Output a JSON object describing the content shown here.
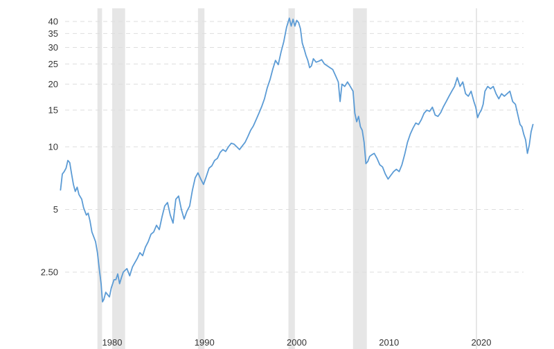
{
  "chart_data": {
    "type": "line",
    "title": "",
    "xlabel": "",
    "ylabel": "",
    "y_scale": "log",
    "ylim": [
      1.8,
      42
    ],
    "xlim": [
      1975.0,
      2026.3
    ],
    "grid": {
      "horizontal": true,
      "vertical": false,
      "style": "dashed"
    },
    "y_ticks": [
      {
        "value": 40,
        "label": "40"
      },
      {
        "value": 35,
        "label": "35"
      },
      {
        "value": 30,
        "label": "30"
      },
      {
        "value": 25,
        "label": "25"
      },
      {
        "value": 20,
        "label": "20"
      },
      {
        "value": 15,
        "label": "15"
      },
      {
        "value": 10,
        "label": "10"
      },
      {
        "value": 5,
        "label": "5"
      },
      {
        "value": 2.5,
        "label": "2.50"
      }
    ],
    "x_ticks": [
      {
        "value": 1980,
        "label": "1980"
      },
      {
        "value": 1990,
        "label": "1990"
      },
      {
        "value": 2000,
        "label": "2000"
      },
      {
        "value": 2010,
        "label": "2010"
      },
      {
        "value": 2020,
        "label": "2020"
      }
    ],
    "shaded_periods": [
      {
        "start": 1979.0,
        "end": 1979.5
      },
      {
        "start": 1980.6,
        "end": 1982.0
      },
      {
        "start": 1989.9,
        "end": 1990.6
      },
      {
        "start": 1999.7,
        "end": 2000.4
      },
      {
        "start": 2006.7,
        "end": 2008.2
      },
      {
        "start": 2020.0,
        "end": 2020.15
      }
    ],
    "series": [
      {
        "color": "#5b9bd5",
        "points": [
          [
            1975.0,
            6.2
          ],
          [
            1975.2,
            7.4
          ],
          [
            1975.4,
            7.6
          ],
          [
            1975.6,
            7.9
          ],
          [
            1975.8,
            8.6
          ],
          [
            1976.0,
            8.4
          ],
          [
            1976.2,
            7.4
          ],
          [
            1976.4,
            6.6
          ],
          [
            1976.6,
            6.1
          ],
          [
            1976.8,
            6.4
          ],
          [
            1977.0,
            5.9
          ],
          [
            1977.3,
            5.6
          ],
          [
            1977.5,
            5.1
          ],
          [
            1977.8,
            4.7
          ],
          [
            1978.0,
            4.8
          ],
          [
            1978.2,
            4.4
          ],
          [
            1978.4,
            3.9
          ],
          [
            1978.6,
            3.7
          ],
          [
            1978.8,
            3.5
          ],
          [
            1979.0,
            3.1
          ],
          [
            1979.2,
            2.6
          ],
          [
            1979.4,
            2.2
          ],
          [
            1979.55,
            1.8
          ],
          [
            1979.7,
            1.85
          ],
          [
            1979.9,
            2.0
          ],
          [
            1980.1,
            1.95
          ],
          [
            1980.3,
            1.9
          ],
          [
            1980.5,
            2.1
          ],
          [
            1980.8,
            2.3
          ],
          [
            1981.0,
            2.3
          ],
          [
            1981.2,
            2.45
          ],
          [
            1981.4,
            2.2
          ],
          [
            1981.6,
            2.35
          ],
          [
            1981.8,
            2.5
          ],
          [
            1982.0,
            2.55
          ],
          [
            1982.2,
            2.6
          ],
          [
            1982.5,
            2.4
          ],
          [
            1982.8,
            2.65
          ],
          [
            1983.0,
            2.75
          ],
          [
            1983.3,
            2.9
          ],
          [
            1983.6,
            3.1
          ],
          [
            1983.9,
            3.0
          ],
          [
            1984.2,
            3.3
          ],
          [
            1984.5,
            3.5
          ],
          [
            1984.8,
            3.8
          ],
          [
            1985.1,
            3.9
          ],
          [
            1985.4,
            4.2
          ],
          [
            1985.7,
            4.0
          ],
          [
            1986.0,
            4.6
          ],
          [
            1986.3,
            5.2
          ],
          [
            1986.6,
            5.4
          ],
          [
            1986.9,
            4.7
          ],
          [
            1987.2,
            4.3
          ],
          [
            1987.5,
            5.6
          ],
          [
            1987.8,
            5.8
          ],
          [
            1988.1,
            5.0
          ],
          [
            1988.4,
            4.5
          ],
          [
            1988.7,
            4.9
          ],
          [
            1989.0,
            5.2
          ],
          [
            1989.3,
            6.2
          ],
          [
            1989.6,
            7.1
          ],
          [
            1989.9,
            7.5
          ],
          [
            1990.2,
            7.0
          ],
          [
            1990.5,
            6.6
          ],
          [
            1990.8,
            7.2
          ],
          [
            1991.1,
            7.9
          ],
          [
            1991.4,
            8.1
          ],
          [
            1991.7,
            8.6
          ],
          [
            1992.0,
            8.8
          ],
          [
            1992.3,
            9.4
          ],
          [
            1992.6,
            9.7
          ],
          [
            1992.9,
            9.5
          ],
          [
            1993.2,
            10.0
          ],
          [
            1993.5,
            10.4
          ],
          [
            1993.8,
            10.3
          ],
          [
            1994.1,
            10.0
          ],
          [
            1994.4,
            9.7
          ],
          [
            1994.7,
            10.1
          ],
          [
            1995.0,
            10.5
          ],
          [
            1995.3,
            11.2
          ],
          [
            1995.6,
            12.0
          ],
          [
            1995.9,
            12.6
          ],
          [
            1996.2,
            13.5
          ],
          [
            1996.5,
            14.5
          ],
          [
            1996.8,
            15.6
          ],
          [
            1997.1,
            17.0
          ],
          [
            1997.4,
            19.2
          ],
          [
            1997.7,
            21.0
          ],
          [
            1998.0,
            23.6
          ],
          [
            1998.3,
            26.0
          ],
          [
            1998.6,
            24.8
          ],
          [
            1998.9,
            28.5
          ],
          [
            1999.2,
            32.0
          ],
          [
            1999.5,
            37.5
          ],
          [
            1999.8,
            41.5
          ],
          [
            2000.0,
            38.0
          ],
          [
            2000.2,
            41.0
          ],
          [
            2000.4,
            38.0
          ],
          [
            2000.6,
            40.5
          ],
          [
            2000.8,
            39.5
          ],
          [
            2001.0,
            37.0
          ],
          [
            2001.2,
            31.5
          ],
          [
            2001.4,
            29.5
          ],
          [
            2001.6,
            27.5
          ],
          [
            2001.8,
            26.0
          ],
          [
            2002.0,
            24.0
          ],
          [
            2002.2,
            24.5
          ],
          [
            2002.4,
            26.5
          ],
          [
            2002.7,
            25.5
          ],
          [
            2003.0,
            25.8
          ],
          [
            2003.3,
            26.2
          ],
          [
            2003.6,
            25.0
          ],
          [
            2003.9,
            24.5
          ],
          [
            2004.2,
            24.0
          ],
          [
            2004.5,
            23.5
          ],
          [
            2004.8,
            22.0
          ],
          [
            2005.1,
            20.5
          ],
          [
            2005.3,
            16.5
          ],
          [
            2005.5,
            20.0
          ],
          [
            2005.8,
            19.5
          ],
          [
            2006.1,
            20.5
          ],
          [
            2006.4,
            19.5
          ],
          [
            2006.7,
            18.5
          ],
          [
            2006.9,
            14.5
          ],
          [
            2007.1,
            13.2
          ],
          [
            2007.3,
            14.0
          ],
          [
            2007.5,
            12.5
          ],
          [
            2007.7,
            12.0
          ],
          [
            2007.9,
            10.5
          ],
          [
            2008.1,
            8.3
          ],
          [
            2008.3,
            8.5
          ],
          [
            2008.5,
            9.0
          ],
          [
            2008.8,
            9.2
          ],
          [
            2009.0,
            9.3
          ],
          [
            2009.3,
            8.8
          ],
          [
            2009.6,
            8.2
          ],
          [
            2009.9,
            8.0
          ],
          [
            2010.2,
            7.4
          ],
          [
            2010.5,
            7.0
          ],
          [
            2010.8,
            7.3
          ],
          [
            2011.1,
            7.6
          ],
          [
            2011.4,
            7.8
          ],
          [
            2011.7,
            7.6
          ],
          [
            2012.0,
            8.2
          ],
          [
            2012.3,
            9.2
          ],
          [
            2012.6,
            10.5
          ],
          [
            2012.9,
            11.5
          ],
          [
            2013.2,
            12.3
          ],
          [
            2013.5,
            13.0
          ],
          [
            2013.8,
            12.8
          ],
          [
            2014.1,
            13.5
          ],
          [
            2014.4,
            14.5
          ],
          [
            2014.7,
            15.0
          ],
          [
            2015.0,
            14.8
          ],
          [
            2015.3,
            15.5
          ],
          [
            2015.6,
            14.2
          ],
          [
            2015.9,
            14.0
          ],
          [
            2016.2,
            14.6
          ],
          [
            2016.5,
            15.6
          ],
          [
            2016.8,
            16.5
          ],
          [
            2017.1,
            17.5
          ],
          [
            2017.4,
            18.5
          ],
          [
            2017.7,
            19.5
          ],
          [
            2018.0,
            21.5
          ],
          [
            2018.3,
            19.5
          ],
          [
            2018.6,
            20.5
          ],
          [
            2018.9,
            18.0
          ],
          [
            2019.2,
            17.5
          ],
          [
            2019.5,
            18.5
          ],
          [
            2019.8,
            16.5
          ],
          [
            2020.0,
            15.5
          ],
          [
            2020.2,
            13.8
          ],
          [
            2020.4,
            14.5
          ],
          [
            2020.6,
            15.0
          ],
          [
            2020.8,
            16.0
          ],
          [
            2021.0,
            18.5
          ],
          [
            2021.3,
            19.5
          ],
          [
            2021.6,
            19.0
          ],
          [
            2021.9,
            19.5
          ],
          [
            2022.2,
            18.0
          ],
          [
            2022.5,
            17.0
          ],
          [
            2022.8,
            18.0
          ],
          [
            2023.1,
            17.5
          ],
          [
            2023.4,
            18.0
          ],
          [
            2023.7,
            18.5
          ],
          [
            2024.0,
            16.5
          ],
          [
            2024.3,
            16.0
          ],
          [
            2024.6,
            14.0
          ],
          [
            2024.8,
            12.8
          ],
          [
            2025.0,
            12.5
          ],
          [
            2025.2,
            11.5
          ],
          [
            2025.4,
            10.8
          ],
          [
            2025.6,
            9.3
          ],
          [
            2025.8,
            10.2
          ],
          [
            2026.0,
            11.8
          ],
          [
            2026.2,
            12.8
          ]
        ]
      }
    ]
  }
}
